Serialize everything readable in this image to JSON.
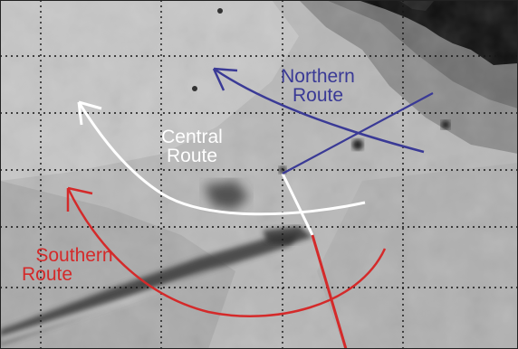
{
  "routes": {
    "northern": {
      "line1": "Northern",
      "line2": "Route",
      "color": "#3a3a96"
    },
    "central": {
      "line1": "Central",
      "line2": "Route",
      "color": "#ffffff"
    },
    "southern": {
      "line1": "Southern",
      "line2": "Route",
      "color": "#d42a2a"
    }
  },
  "map": {
    "grid": "dotted",
    "coastline_color": "#0d0d0d",
    "shelf_color": "#6e6e6e",
    "water_color": "#b8b8b8",
    "grid_color": "#151515"
  }
}
